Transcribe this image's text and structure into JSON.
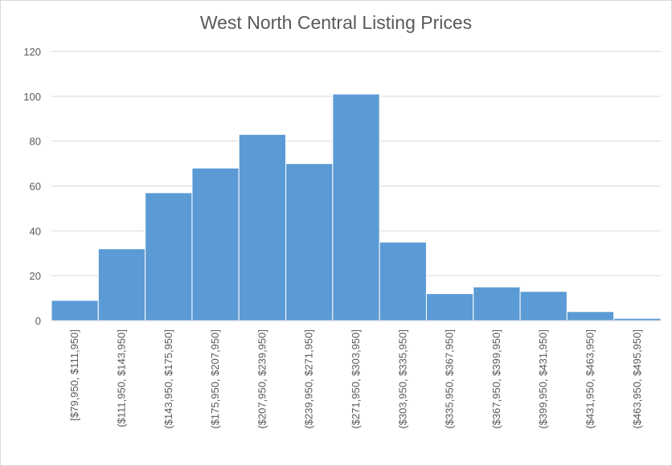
{
  "chart_data": {
    "type": "bar",
    "title": "West North Central Listing Prices",
    "xlabel": "",
    "ylabel": "",
    "categories": [
      "[$79,950, $111,950]",
      "($111,950, $143,950]",
      "($143,950, $175,950]",
      "($175,950, $207,950]",
      "($207,950, $239,950]",
      "($239,950, $271,950]",
      "($271,950, $303,950]",
      "($303,950, $335,950]",
      "($335,950, $367,950]",
      "($367,950, $399,950]",
      "($399,950, $431,950]",
      "($431,950, $463,950]",
      "($463,950, $495,950]"
    ],
    "values": [
      9,
      32,
      57,
      68,
      83,
      70,
      101,
      35,
      12,
      15,
      13,
      4,
      1
    ],
    "ylim": [
      0,
      120
    ],
    "yticks": [
      0,
      20,
      40,
      60,
      80,
      100,
      120
    ],
    "grid": true,
    "legend": "none",
    "bar_color": "#5b9bd5",
    "grid_color": "#d9d9d9"
  }
}
